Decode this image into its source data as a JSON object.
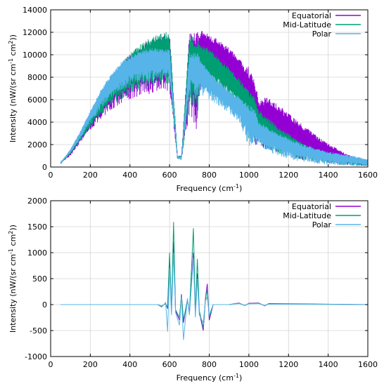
{
  "chart_data": [
    {
      "type": "line",
      "xlabel": "Frequency (cm",
      "xlabel_sup": "-1",
      "xlabel_end": ")",
      "ylabel": "Intensity (nW/(sr cm",
      "ylabel_sup1": "-1",
      "ylabel_mid": " cm",
      "ylabel_sup2": "2",
      "ylabel_end": "))",
      "xlim": [
        0,
        1600
      ],
      "ylim": [
        0,
        14000
      ],
      "xticks": [
        0,
        200,
        400,
        600,
        800,
        1000,
        1200,
        1400,
        1600
      ],
      "yticks": [
        0,
        2000,
        4000,
        6000,
        8000,
        10000,
        12000,
        14000
      ],
      "grid": true,
      "legend": "top-right",
      "series": [
        {
          "name": "Equatorial",
          "color": "#9400d3",
          "x": [
            50,
            100,
            150,
            200,
            250,
            300,
            350,
            400,
            450,
            500,
            550,
            600,
            640,
            660,
            700,
            740,
            760,
            800,
            850,
            900,
            950,
            1000,
            1030,
            1050,
            1100,
            1150,
            1200,
            1250,
            1300,
            1350,
            1400,
            1450,
            1500,
            1550,
            1600
          ],
          "upper": [
            400,
            1500,
            3000,
            4700,
            6300,
            7800,
            9100,
            10100,
            10800,
            11300,
            11600,
            11900,
            1000,
            1000,
            11900,
            12000,
            12200,
            11800,
            11300,
            10600,
            9800,
            8900,
            8000,
            6000,
            6300,
            5500,
            4800,
            4100,
            3400,
            2700,
            2100,
            1600,
            1100,
            800,
            400
          ],
          "lower": [
            300,
            1000,
            2100,
            3200,
            4200,
            5000,
            5600,
            6000,
            6300,
            6500,
            6700,
            6800,
            700,
            700,
            4500,
            3000,
            7700,
            8000,
            7800,
            7300,
            6500,
            2000,
            1900,
            1600,
            1500,
            1300,
            900,
            700,
            500,
            400,
            300,
            200,
            150,
            100,
            80
          ]
        },
        {
          "name": "Mid-Latitude",
          "color": "#009e73",
          "x": [
            50,
            100,
            150,
            200,
            250,
            300,
            350,
            400,
            450,
            500,
            550,
            600,
            640,
            660,
            700,
            740,
            760,
            800,
            850,
            900,
            950,
            1000,
            1030,
            1050,
            1100,
            1150,
            1200,
            1250,
            1300,
            1350,
            1400,
            1450,
            1500,
            1550,
            1600
          ],
          "upper": [
            400,
            1500,
            3000,
            4700,
            6300,
            7800,
            9100,
            10100,
            10900,
            11500,
            11900,
            12100,
            1000,
            1000,
            11800,
            11500,
            11000,
            10500,
            9800,
            8900,
            7900,
            6900,
            6300,
            5200,
            4300,
            3600,
            3000,
            2400,
            1900,
            1500,
            1200,
            1000,
            900,
            800,
            700
          ],
          "lower": [
            300,
            1100,
            2300,
            3500,
            4500,
            5300,
            5900,
            6400,
            6800,
            7000,
            7200,
            7400,
            700,
            700,
            5500,
            4200,
            7500,
            7200,
            6800,
            6200,
            5200,
            2300,
            2100,
            2000,
            1500,
            1200,
            900,
            700,
            500,
            400,
            300,
            200,
            150,
            100,
            80
          ]
        },
        {
          "name": "Polar",
          "color": "#56b4e9",
          "x": [
            50,
            100,
            150,
            200,
            250,
            300,
            350,
            400,
            450,
            500,
            550,
            600,
            640,
            660,
            700,
            740,
            760,
            800,
            850,
            900,
            950,
            1000,
            1030,
            1050,
            1100,
            1150,
            1200,
            1250,
            1300,
            1350,
            1400,
            1450,
            1500,
            1550,
            1600
          ],
          "upper": [
            400,
            1600,
            3200,
            5000,
            6800,
            8200,
            9300,
            10000,
            10400,
            10600,
            10600,
            10500,
            1000,
            900,
            10300,
            10200,
            9500,
            8500,
            7600,
            6900,
            6300,
            5600,
            5200,
            4000,
            3500,
            3000,
            2600,
            2200,
            1900,
            1600,
            1400,
            1200,
            1100,
            900,
            700
          ],
          "lower": [
            300,
            1200,
            2500,
            3900,
            5100,
            6100,
            6800,
            7200,
            7500,
            7700,
            7800,
            7800,
            800,
            600,
            6500,
            5800,
            6400,
            6000,
            5400,
            4700,
            4000,
            1800,
            1700,
            1900,
            1300,
            1000,
            700,
            500,
            400,
            300,
            200,
            150,
            100,
            80,
            60
          ]
        }
      ]
    },
    {
      "type": "line",
      "xlabel": "Frequency (cm",
      "xlabel_sup": "-1",
      "xlabel_end": ")",
      "ylabel": "Intensity (nW/(sr cm",
      "ylabel_sup1": "-1",
      "ylabel_mid": " cm",
      "ylabel_sup2": "2",
      "ylabel_end": "))",
      "xlim": [
        0,
        1600
      ],
      "ylim": [
        -1000,
        2000
      ],
      "xticks": [
        0,
        200,
        400,
        600,
        800,
        1000,
        1200,
        1400,
        1600
      ],
      "yticks": [
        -1000,
        -500,
        0,
        500,
        1000,
        1500,
        2000
      ],
      "grid": true,
      "legend": "top-right",
      "series": [
        {
          "name": "Equatorial",
          "color": "#9400d3",
          "x": [
            50,
            540,
            560,
            580,
            590,
            600,
            610,
            620,
            630,
            650,
            660,
            670,
            690,
            700,
            720,
            730,
            740,
            750,
            770,
            780,
            790,
            800,
            820,
            900,
            950,
            980,
            1000,
            1050,
            1080,
            1100,
            1600
          ],
          "values": [
            0,
            0,
            -40,
            30,
            -80,
            900,
            -150,
            1200,
            -120,
            -300,
            200,
            -350,
            100,
            -180,
            1000,
            -200,
            600,
            -150,
            -500,
            80,
            400,
            -300,
            0,
            0,
            30,
            -20,
            25,
            30,
            -25,
            20,
            0
          ]
        },
        {
          "name": "Mid-Latitude",
          "color": "#009e73",
          "x": [
            50,
            540,
            560,
            580,
            590,
            600,
            610,
            620,
            630,
            650,
            660,
            670,
            690,
            700,
            720,
            730,
            740,
            750,
            770,
            780,
            790,
            800,
            820,
            900,
            950,
            980,
            1000,
            1050,
            1080,
            1100,
            1600
          ],
          "values": [
            0,
            0,
            -30,
            20,
            -60,
            1000,
            -120,
            1590,
            -100,
            -250,
            180,
            -300,
            90,
            -150,
            1470,
            -180,
            880,
            -120,
            -450,
            70,
            300,
            -250,
            0,
            0,
            25,
            -15,
            20,
            25,
            -20,
            15,
            0
          ]
        },
        {
          "name": "Polar",
          "color": "#56b4e9",
          "x": [
            50,
            540,
            560,
            580,
            590,
            600,
            610,
            620,
            630,
            650,
            660,
            670,
            690,
            700,
            720,
            730,
            740,
            750,
            770,
            780,
            790,
            800,
            820,
            900,
            950,
            980,
            1000,
            1050,
            1080,
            1100,
            1600
          ],
          "values": [
            0,
            0,
            -50,
            40,
            -520,
            700,
            -200,
            1000,
            -150,
            -400,
            150,
            -680,
            120,
            -200,
            900,
            -250,
            500,
            -200,
            -350,
            60,
            150,
            -200,
            0,
            0,
            20,
            -15,
            15,
            20,
            -20,
            10,
            0
          ]
        }
      ]
    }
  ]
}
